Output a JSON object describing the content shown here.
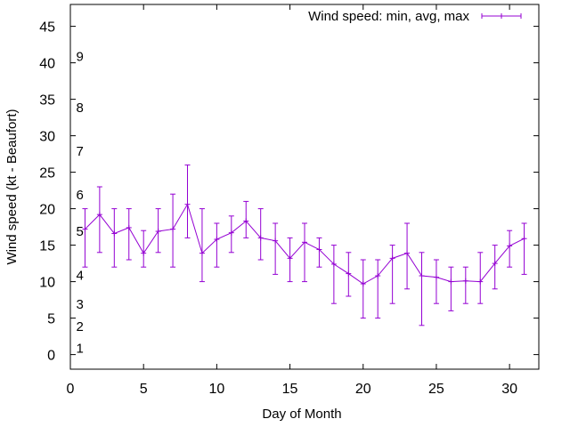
{
  "chart_data": {
    "type": "line",
    "xlabel": "Day of Month",
    "ylabel": "Wind speed (kt - Beaufort)",
    "xlim": [
      0,
      32
    ],
    "ylim": [
      -2,
      48
    ],
    "x_ticks": [
      0,
      5,
      10,
      15,
      20,
      25,
      30
    ],
    "y_ticks": [
      0,
      5,
      10,
      15,
      20,
      25,
      30,
      35,
      40,
      45
    ],
    "grid": false,
    "legend_position": "top-right",
    "series": [
      {
        "name": "Wind speed: min, avg, max",
        "color": "#9400d3",
        "style": "line with error bars",
        "points": [
          {
            "x": 1,
            "y": 17.2,
            "min": 12,
            "max": 20
          },
          {
            "x": 2,
            "y": 19.2,
            "min": 14,
            "max": 23
          },
          {
            "x": 3,
            "y": 16.6,
            "min": 12,
            "max": 20
          },
          {
            "x": 4,
            "y": 17.4,
            "min": 13,
            "max": 20
          },
          {
            "x": 5,
            "y": 13.9,
            "min": 12,
            "max": 17
          },
          {
            "x": 6,
            "y": 16.9,
            "min": 14,
            "max": 20
          },
          {
            "x": 7,
            "y": 17.2,
            "min": 12,
            "max": 22
          },
          {
            "x": 8,
            "y": 20.6,
            "min": 16,
            "max": 26
          },
          {
            "x": 9,
            "y": 13.9,
            "min": 10,
            "max": 20
          },
          {
            "x": 10,
            "y": 15.8,
            "min": 12,
            "max": 18
          },
          {
            "x": 11,
            "y": 16.7,
            "min": 14,
            "max": 19
          },
          {
            "x": 12,
            "y": 18.3,
            "min": 16,
            "max": 21
          },
          {
            "x": 13,
            "y": 16.0,
            "min": 13,
            "max": 20
          },
          {
            "x": 14,
            "y": 15.6,
            "min": 11,
            "max": 18
          },
          {
            "x": 15,
            "y": 13.2,
            "min": 10,
            "max": 16
          },
          {
            "x": 16,
            "y": 15.4,
            "min": 10,
            "max": 18
          },
          {
            "x": 17,
            "y": 14.4,
            "min": 12,
            "max": 16
          },
          {
            "x": 18,
            "y": 12.4,
            "min": 7,
            "max": 15
          },
          {
            "x": 19,
            "y": 11.1,
            "min": 8,
            "max": 14
          },
          {
            "x": 20,
            "y": 9.7,
            "min": 5,
            "max": 13
          },
          {
            "x": 21,
            "y": 10.8,
            "min": 5,
            "max": 13
          },
          {
            "x": 22,
            "y": 13.2,
            "min": 7,
            "max": 15
          },
          {
            "x": 23,
            "y": 13.9,
            "min": 9,
            "max": 18
          },
          {
            "x": 24,
            "y": 10.8,
            "min": 4,
            "max": 14
          },
          {
            "x": 25,
            "y": 10.6,
            "min": 7,
            "max": 13
          },
          {
            "x": 26,
            "y": 10.0,
            "min": 6,
            "max": 12
          },
          {
            "x": 27,
            "y": 10.1,
            "min": 7,
            "max": 12
          },
          {
            "x": 28,
            "y": 10.0,
            "min": 7,
            "max": 14
          },
          {
            "x": 29,
            "y": 12.5,
            "min": 9,
            "max": 15
          },
          {
            "x": 30,
            "y": 14.9,
            "min": 12,
            "max": 17
          },
          {
            "x": 31,
            "y": 15.9,
            "min": 11,
            "max": 18
          }
        ]
      }
    ],
    "annotations": [
      {
        "text": "1",
        "x": 0.7,
        "y": 1
      },
      {
        "text": "2",
        "x": 0.7,
        "y": 4
      },
      {
        "text": "3",
        "x": 0.7,
        "y": 7
      },
      {
        "text": "4",
        "x": 0.7,
        "y": 11
      },
      {
        "text": "5",
        "x": 0.7,
        "y": 17
      },
      {
        "text": "6",
        "x": 0.7,
        "y": 22
      },
      {
        "text": "7",
        "x": 0.7,
        "y": 28
      },
      {
        "text": "8",
        "x": 0.7,
        "y": 34
      },
      {
        "text": "9",
        "x": 0.7,
        "y": 41
      }
    ]
  }
}
